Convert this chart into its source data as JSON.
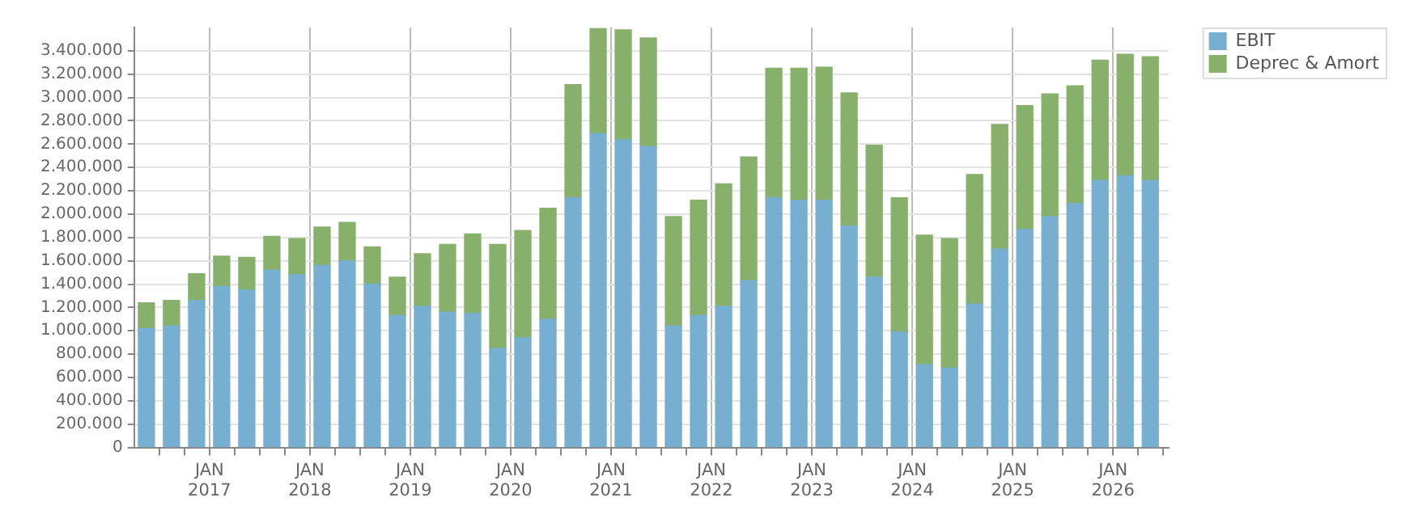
{
  "chart_data": {
    "type": "bar",
    "stacked": true,
    "legend": "top right",
    "grid": true,
    "x": [
      "2016-05-15",
      "2016-08-15",
      "2016-11-15",
      "2017-02-15",
      "2017-05-15",
      "2017-08-15",
      "2017-11-15",
      "2018-02-15",
      "2018-05-15",
      "2018-08-15",
      "2018-11-15",
      "2019-02-15",
      "2019-05-15",
      "2019-08-15",
      "2019-11-15",
      "2020-02-15",
      "2020-05-15",
      "2020-08-15",
      "2020-11-15",
      "2021-02-15",
      "2021-05-15",
      "2021-08-15",
      "2021-11-15",
      "2022-02-15",
      "2022-05-15",
      "2022-08-15",
      "2022-11-15",
      "2023-02-15",
      "2023-05-15",
      "2023-08-15",
      "2023-11-15",
      "2024-02-15",
      "2024-05-15",
      "2024-08-15",
      "2024-11-15",
      "2025-02-15",
      "2025-05-15",
      "2025-08-15",
      "2025-11-15",
      "2026-02-15",
      "2026-05-15"
    ],
    "series": [
      {
        "name": "EBIT",
        "color": "#77afd1",
        "values": [
          1020000,
          1040000,
          1260000,
          1380000,
          1350000,
          1520000,
          1480000,
          1560000,
          1600000,
          1400000,
          1130000,
          1210000,
          1160000,
          1150000,
          850000,
          940000,
          1100000,
          2140000,
          2690000,
          2640000,
          2580000,
          1040000,
          1130000,
          1210000,
          1430000,
          2140000,
          2120000,
          2120000,
          1900000,
          1460000,
          990000,
          710000,
          680000,
          1230000,
          1700000,
          1870000,
          1980000,
          2090000,
          2290000,
          2330000,
          2290000
        ]
      },
      {
        "name": "Deprec & Amort",
        "color": "#87b06a",
        "values": [
          220000,
          220000,
          230000,
          260000,
          280000,
          290000,
          310000,
          330000,
          330000,
          320000,
          330000,
          450000,
          580000,
          680000,
          890000,
          920000,
          950000,
          970000,
          900000,
          940000,
          930000,
          940000,
          990000,
          1050000,
          1060000,
          1110000,
          1130000,
          1140000,
          1140000,
          1130000,
          1150000,
          1110000,
          1110000,
          1110000,
          1070000,
          1060000,
          1050000,
          1010000,
          1030000,
          1040000,
          1060000
        ]
      }
    ],
    "xlim": [
      "2016-04-01",
      "2026-07-20"
    ],
    "xticks": [
      {
        "value": "2016-07-01",
        "label": null
      },
      {
        "value": "2016-10-01",
        "label": null
      },
      {
        "value": "2017-01-01",
        "label": "JAN\n2017"
      },
      {
        "value": "2017-04-01",
        "label": null
      },
      {
        "value": "2017-07-01",
        "label": null
      },
      {
        "value": "2017-10-01",
        "label": null
      },
      {
        "value": "2018-01-01",
        "label": "JAN\n2018"
      },
      {
        "value": "2018-04-01",
        "label": null
      },
      {
        "value": "2018-07-01",
        "label": null
      },
      {
        "value": "2018-10-01",
        "label": null
      },
      {
        "value": "2019-01-01",
        "label": "JAN\n2019"
      },
      {
        "value": "2019-04-01",
        "label": null
      },
      {
        "value": "2019-07-01",
        "label": null
      },
      {
        "value": "2019-10-01",
        "label": null
      },
      {
        "value": "2020-01-01",
        "label": "JAN\n2020"
      },
      {
        "value": "2020-04-01",
        "label": null
      },
      {
        "value": "2020-07-01",
        "label": null
      },
      {
        "value": "2020-10-01",
        "label": null
      },
      {
        "value": "2021-01-01",
        "label": "JAN\n2021"
      },
      {
        "value": "2021-04-01",
        "label": null
      },
      {
        "value": "2021-07-01",
        "label": null
      },
      {
        "value": "2021-10-01",
        "label": null
      },
      {
        "value": "2022-01-01",
        "label": "JAN\n2022"
      },
      {
        "value": "2022-04-01",
        "label": null
      },
      {
        "value": "2022-07-01",
        "label": null
      },
      {
        "value": "2022-10-01",
        "label": null
      },
      {
        "value": "2023-01-01",
        "label": "JAN\n2023"
      },
      {
        "value": "2023-04-01",
        "label": null
      },
      {
        "value": "2023-07-01",
        "label": null
      },
      {
        "value": "2023-10-01",
        "label": null
      },
      {
        "value": "2024-01-01",
        "label": "JAN\n2024"
      },
      {
        "value": "2024-04-01",
        "label": null
      },
      {
        "value": "2024-07-01",
        "label": null
      },
      {
        "value": "2024-10-01",
        "label": null
      },
      {
        "value": "2025-01-01",
        "label": "JAN\n2025"
      },
      {
        "value": "2025-04-01",
        "label": null
      },
      {
        "value": "2025-07-01",
        "label": null
      },
      {
        "value": "2025-10-01",
        "label": null
      },
      {
        "value": "2026-01-01",
        "label": "JAN\n2026"
      },
      {
        "value": "2026-04-01",
        "label": null
      },
      {
        "value": "2026-07-01",
        "label": null
      }
    ],
    "ylim": [
      0,
      3600000
    ],
    "yticks": [
      {
        "value": 0,
        "label": "0"
      },
      {
        "value": 200000,
        "label": "200.000"
      },
      {
        "value": 400000,
        "label": "400.000"
      },
      {
        "value": 600000,
        "label": "600.000"
      },
      {
        "value": 800000,
        "label": "800.000"
      },
      {
        "value": 1000000,
        "label": "1.000.000"
      },
      {
        "value": 1200000,
        "label": "1.200.000"
      },
      {
        "value": 1400000,
        "label": "1.400.000"
      },
      {
        "value": 1600000,
        "label": "1.600.000"
      },
      {
        "value": 1800000,
        "label": "1.800.000"
      },
      {
        "value": 2000000,
        "label": "2.000.000"
      },
      {
        "value": 2200000,
        "label": "2.200.000"
      },
      {
        "value": 2400000,
        "label": "2.400.000"
      },
      {
        "value": 2600000,
        "label": "2.600.000"
      },
      {
        "value": 2800000,
        "label": "2.800.000"
      },
      {
        "value": 3000000,
        "label": "3.000.000"
      },
      {
        "value": 3200000,
        "label": "3.200.000"
      },
      {
        "value": 3400000,
        "label": "3.400.000"
      }
    ]
  }
}
